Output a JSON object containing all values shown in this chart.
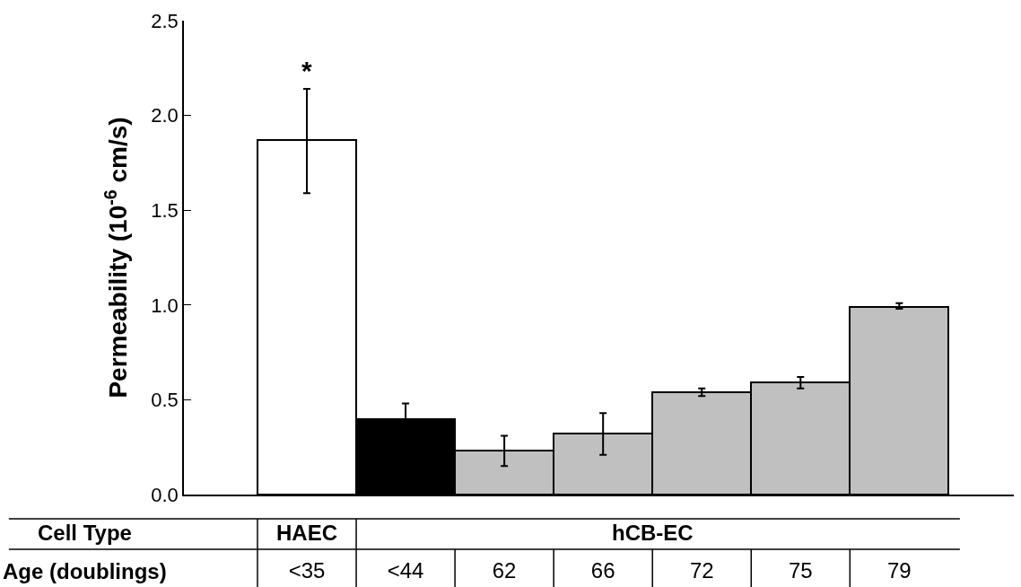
{
  "chart_data": {
    "type": "bar",
    "ylabel": "Permeability (10$^{-6}$ cm/s)",
    "xlabel": "Age (doublings)",
    "categories": [
      "<35",
      "<44",
      "62",
      "66",
      "72",
      "75",
      "79"
    ],
    "values": [
      1.87,
      0.4,
      0.23,
      0.32,
      0.54,
      0.59,
      0.99
    ],
    "colors": [
      "#ffffff",
      "#000000",
      "#c0c0c0",
      "#c0c0c0",
      "#c0c0c0",
      "#c0c0c0",
      "#c0c0c0"
    ],
    "errors": [
      [
        1.59,
        2.14
      ],
      0.08,
      [
        0.15,
        0.31
      ],
      [
        0.21,
        0.43
      ],
      [
        0.52,
        0.56
      ],
      [
        0.56,
        0.62
      ],
      [
        0.98,
        1.01
      ]
    ],
    "ylim": [
      0,
      2.5
    ],
    "yticks": [
      {
        "value": 0,
        "label": "0.0"
      },
      {
        "value": 0.5,
        "label": "0.5"
      },
      {
        "value": 1,
        "label": "1.0"
      },
      {
        "value": 1.5,
        "label": "1.5"
      },
      {
        "value": 2,
        "label": "2.0"
      },
      {
        "value": 2.5,
        "label": "2.5"
      }
    ],
    "grid": false,
    "annotations": [
      "Cell Type",
      "HAEC",
      "hCB-EC",
      {
        "text": "*",
        "x": "<35",
        "y": 2.14
      }
    ]
  }
}
